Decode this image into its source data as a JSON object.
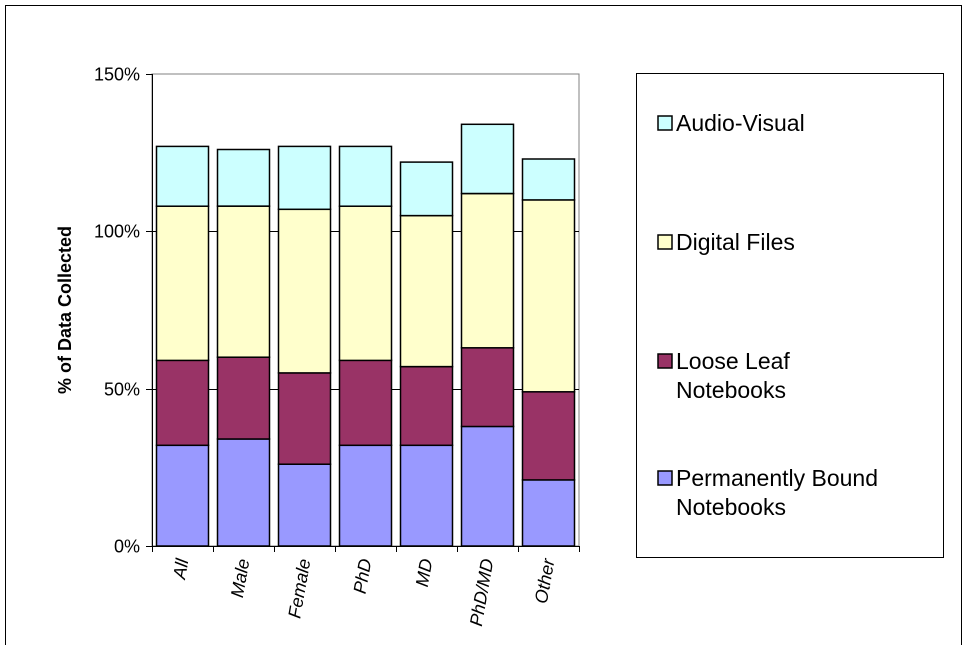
{
  "chart_data": {
    "type": "bar",
    "stacked": true,
    "title": "",
    "xlabel": "",
    "ylabel": "% of Data Collected",
    "ylim": [
      0,
      150
    ],
    "yticks": [
      "0%",
      "50%",
      "100%",
      "150%"
    ],
    "ytick_values": [
      0,
      50,
      100,
      150
    ],
    "grid": true,
    "legend_position": "right",
    "categories": [
      "All",
      "Male",
      "Female",
      "PhD",
      "MD",
      "PhD/MD",
      "Other"
    ],
    "series": [
      {
        "name": "Permanently Bound Notebooks",
        "color": "#9999ff",
        "values": [
          32,
          34,
          26,
          32,
          32,
          38,
          21
        ]
      },
      {
        "name": "Loose Leaf Notebooks",
        "color": "#993366",
        "values": [
          27,
          26,
          29,
          27,
          25,
          25,
          28
        ]
      },
      {
        "name": "Digital Files",
        "color": "#ffffcc",
        "values": [
          49,
          48,
          52,
          49,
          48,
          49,
          61
        ]
      },
      {
        "name": "Audio-Visual",
        "color": "#ccffff",
        "values": [
          19,
          18,
          20,
          19,
          17,
          22,
          13
        ]
      }
    ],
    "legend": [
      {
        "key": 3,
        "lines": [
          "Audio-Visual"
        ]
      },
      {
        "key": 2,
        "lines": [
          "Digital Files"
        ]
      },
      {
        "key": 1,
        "lines": [
          "Loose Leaf",
          "Notebooks"
        ]
      },
      {
        "key": 0,
        "lines": [
          "Permanently Bound",
          "Notebooks"
        ]
      }
    ]
  }
}
